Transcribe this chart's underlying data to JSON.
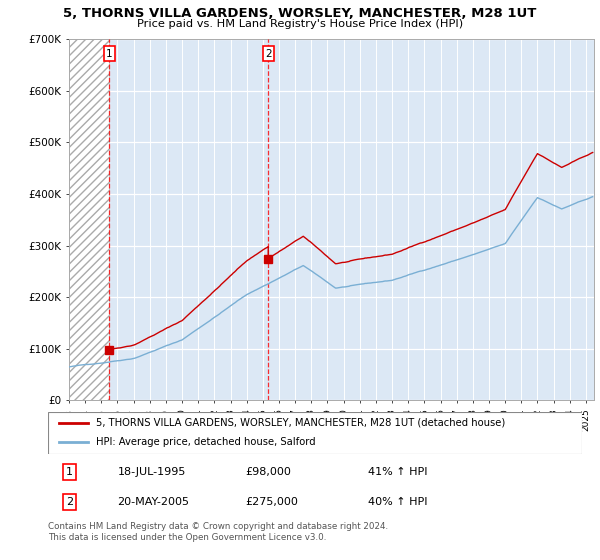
{
  "title": "5, THORNS VILLA GARDENS, WORSLEY, MANCHESTER, M28 1UT",
  "subtitle": "Price paid vs. HM Land Registry's House Price Index (HPI)",
  "legend_entry1": "5, THORNS VILLA GARDENS, WORSLEY, MANCHESTER, M28 1UT (detached house)",
  "legend_entry2": "HPI: Average price, detached house, Salford",
  "footnote": "Contains HM Land Registry data © Crown copyright and database right 2024.\nThis data is licensed under the Open Government Licence v3.0.",
  "transaction1_date": "18-JUL-1995",
  "transaction1_price": 98000,
  "transaction1_hpi": "41% ↑ HPI",
  "transaction2_date": "20-MAY-2005",
  "transaction2_price": 275000,
  "transaction2_hpi": "40% ↑ HPI",
  "property_color": "#cc0000",
  "hpi_color": "#7aafd4",
  "ylim": [
    0,
    700000
  ],
  "yticks": [
    0,
    100000,
    200000,
    300000,
    400000,
    500000,
    600000,
    700000
  ],
  "ytick_labels": [
    "£0",
    "£100K",
    "£200K",
    "£300K",
    "£400K",
    "£500K",
    "£600K",
    "£700K"
  ],
  "xmin": 1993,
  "xmax": 2025.5,
  "plot_bg": "#dce8f5",
  "hatch_bg": "#ffffff"
}
